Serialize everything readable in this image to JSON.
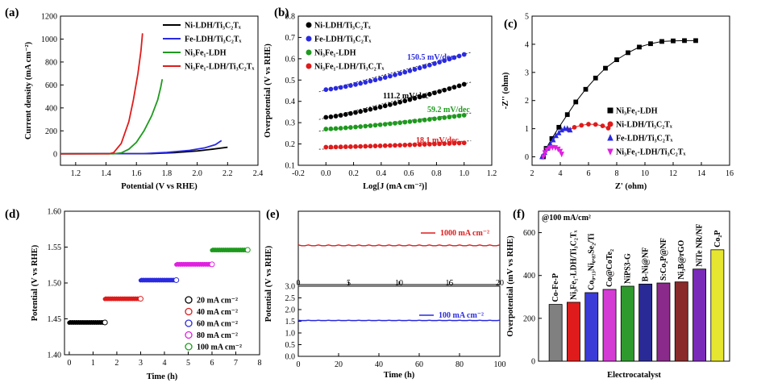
{
  "chart_data": [
    {
      "panel": "(a)",
      "type": "line",
      "xlabel": "Potential (V vs RHE)",
      "ylabel": "Current density (mA cm⁻²)",
      "xlim": [
        1.1,
        2.4
      ],
      "ylim": [
        -100,
        1200
      ],
      "xticks": [
        "1.2",
        "1.4",
        "1.6",
        "1.8",
        "2.0",
        "2.2",
        "2.4"
      ],
      "yticks": [
        "0",
        "200",
        "400",
        "600",
        "800",
        "1000",
        "1200"
      ],
      "legend_position": "top-right",
      "series": [
        {
          "name": "Ni-LDH/Ti₃C₂Tₓ",
          "color": "#000000",
          "points": [
            [
              1.1,
              0
            ],
            [
              1.7,
              2
            ],
            [
              1.85,
              10
            ],
            [
              2.0,
              25
            ],
            [
              2.1,
              40
            ],
            [
              2.2,
              57
            ]
          ]
        },
        {
          "name": "Fe-LDH/Ti₃C₂Tₓ",
          "color": "#2a2ae0",
          "points": [
            [
              1.1,
              0
            ],
            [
              1.65,
              2
            ],
            [
              1.8,
              12
            ],
            [
              1.95,
              30
            ],
            [
              2.05,
              52
            ],
            [
              2.12,
              80
            ],
            [
              2.16,
              115
            ]
          ]
        },
        {
          "name": "Ni₃Fe₁-LDH",
          "color": "#1e9a1e",
          "points": [
            [
              1.1,
              0
            ],
            [
              1.45,
              0
            ],
            [
              1.5,
              8
            ],
            [
              1.55,
              40
            ],
            [
              1.6,
              100
            ],
            [
              1.65,
              200
            ],
            [
              1.7,
              330
            ],
            [
              1.74,
              470
            ],
            [
              1.76,
              580
            ],
            [
              1.77,
              650
            ]
          ]
        },
        {
          "name": "Ni₃Fe₁-LDH/Ti₃C₂Tₓ",
          "color": "#e01b1b",
          "points": [
            [
              1.1,
              0
            ],
            [
              1.42,
              0
            ],
            [
              1.45,
              10
            ],
            [
              1.5,
              90
            ],
            [
              1.55,
              280
            ],
            [
              1.58,
              470
            ],
            [
              1.61,
              700
            ],
            [
              1.63,
              900
            ],
            [
              1.64,
              1050
            ]
          ]
        }
      ]
    },
    {
      "panel": "(b)",
      "type": "scatter",
      "xlabel": "Log[J (mA cm⁻²)]",
      "ylabel": "Overpotential (V vs RHE)",
      "xlim": [
        -0.2,
        1.2
      ],
      "ylim": [
        0.1,
        0.8
      ],
      "xticks": [
        "-0.2",
        "0.0",
        "0.2",
        "0.4",
        "0.6",
        "0.8",
        "1.0",
        "1.2"
      ],
      "yticks": [
        "0.1",
        "0.2",
        "0.3",
        "0.4",
        "0.5",
        "0.6",
        "0.7",
        "0.8"
      ],
      "legend_position": "top-left",
      "series": [
        {
          "name": "Ni-LDH/Ti₃C₂Tₓ",
          "color": "#000000",
          "x0": 0.0,
          "x1": 1.0,
          "y0": 0.325,
          "y1": 0.48,
          "marker": "circle",
          "tafel": "111.2 mV/dec"
        },
        {
          "name": "Fe-LDH/Ti₃C₂Tₓ",
          "color": "#2a2ae0",
          "x0": 0.0,
          "x1": 1.0,
          "y0": 0.455,
          "y1": 0.62,
          "marker": "circle",
          "tafel": "150.5 mV/dec"
        },
        {
          "name": "Ni₃Fe₁-LDH",
          "color": "#1e9a1e",
          "x0": 0.0,
          "x1": 1.0,
          "y0": 0.27,
          "y1": 0.335,
          "marker": "circle",
          "tafel": "59.2 mV/dec"
        },
        {
          "name": "Ni₃Fe₁-LDH/Ti₃C₂Tₓ",
          "color": "#e01b1b",
          "x0": 0.0,
          "x1": 1.0,
          "y0": 0.185,
          "y1": 0.205,
          "marker": "circle",
          "tafel": "18.1 mV/dec"
        }
      ]
    },
    {
      "panel": "(c)",
      "type": "scatter",
      "xlabel": "Z' (ohm)",
      "ylabel": "-Z'' (ohm)",
      "xlim": [
        2,
        16
      ],
      "ylim": [
        -0.3,
        5
      ],
      "xticks": [
        "2",
        "4",
        "6",
        "8",
        "10",
        "12",
        "14",
        "16"
      ],
      "yticks": [
        "0",
        "1",
        "2",
        "3",
        "4",
        "5"
      ],
      "legend_position": "bottom-right",
      "series": [
        {
          "name": "Ni₃Fe₁-LDH",
          "color": "#000000",
          "marker": "square",
          "points": [
            [
              2.8,
              0.0
            ],
            [
              3.0,
              0.3
            ],
            [
              3.4,
              0.65
            ],
            [
              3.9,
              1.05
            ],
            [
              4.5,
              1.5
            ],
            [
              5.1,
              1.95
            ],
            [
              5.8,
              2.4
            ],
            [
              6.5,
              2.8
            ],
            [
              7.2,
              3.15
            ],
            [
              8.0,
              3.45
            ],
            [
              8.8,
              3.7
            ],
            [
              9.6,
              3.9
            ],
            [
              10.4,
              4.02
            ],
            [
              11.2,
              4.1
            ],
            [
              12.0,
              4.12
            ],
            [
              12.8,
              4.13
            ],
            [
              13.6,
              4.13
            ]
          ]
        },
        {
          "name": "Ni-LDH/Ti₃C₂Tₓ",
          "color": "#e01b1b",
          "marker": "circle",
          "points": [
            [
              4.6,
              0.95
            ],
            [
              5.0,
              1.05
            ],
            [
              5.5,
              1.12
            ],
            [
              6.0,
              1.16
            ],
            [
              6.5,
              1.15
            ],
            [
              7.0,
              1.1
            ],
            [
              7.4,
              1.02
            ]
          ]
        },
        {
          "name": "Fe-LDH/Ti₃C₂Tₓ",
          "color": "#2a2ae0",
          "marker": "triangle",
          "points": [
            [
              2.7,
              0.0
            ],
            [
              2.9,
              0.15
            ],
            [
              3.1,
              0.3
            ],
            [
              3.3,
              0.45
            ],
            [
              3.5,
              0.6
            ],
            [
              3.7,
              0.75
            ],
            [
              3.9,
              0.85
            ],
            [
              4.1,
              0.95
            ],
            [
              4.3,
              1.0
            ],
            [
              4.5,
              1.0
            ],
            [
              4.7,
              0.95
            ]
          ]
        },
        {
          "name": "Ni₃Fe₁-LDH/Ti₃C₂Tₓ",
          "color": "#e020e0",
          "marker": "triangle-down",
          "points": [
            [
              2.8,
              0.0
            ],
            [
              2.9,
              0.15
            ],
            [
              3.05,
              0.25
            ],
            [
              3.25,
              0.32
            ],
            [
              3.45,
              0.34
            ],
            [
              3.65,
              0.33
            ],
            [
              3.85,
              0.28
            ],
            [
              4.0,
              0.2
            ],
            [
              4.1,
              0.1
            ]
          ]
        }
      ]
    },
    {
      "panel": "(d)",
      "type": "scatter",
      "xlabel": "Time (h)",
      "ylabel": "Potential (V vs RHE)",
      "xlim": [
        -0.2,
        8
      ],
      "ylim": [
        1.4,
        1.6
      ],
      "xticks": [
        "0",
        "1",
        "2",
        "3",
        "4",
        "5",
        "6",
        "7",
        "8"
      ],
      "yticks": [
        "1.40",
        "1.45",
        "1.50",
        "1.55",
        "1.60"
      ],
      "legend_position": "bottom-right",
      "series": [
        {
          "name": "20 mA cm⁻²",
          "color": "#000000",
          "x0": 0.0,
          "x1": 1.5,
          "y": 1.445
        },
        {
          "name": "40 mA cm⁻²",
          "color": "#e01b1b",
          "x0": 1.5,
          "x1": 3.0,
          "y": 1.478
        },
        {
          "name": "60 mA cm⁻²",
          "color": "#2a2ae0",
          "x0": 3.0,
          "x1": 4.5,
          "y": 1.504
        },
        {
          "name": "80 mA cm⁻²",
          "color": "#e020e0",
          "x0": 4.5,
          "x1": 6.0,
          "y": 1.526
        },
        {
          "name": "100 mA cm⁻²",
          "color": "#1e9a1e",
          "x0": 6.0,
          "x1": 7.5,
          "y": 1.546
        }
      ]
    },
    {
      "panel": "(e)",
      "type": "line",
      "ylabel": "Potential (V vs RHE)",
      "top": {
        "xlim": [
          0,
          20
        ],
        "ylim": [
          0,
          3.0
        ],
        "xticks": [
          "0",
          "5",
          "10",
          "15",
          "20"
        ],
        "series": [
          {
            "name": "1000 mA cm⁻²",
            "color": "#e01b1b",
            "y": 1.6
          }
        ]
      },
      "bottom": {
        "xlabel": "Time (h)",
        "xlim": [
          0,
          100
        ],
        "ylim": [
          0,
          3.0
        ],
        "xticks": [
          "0",
          "20",
          "40",
          "60",
          "80",
          "100"
        ],
        "yticks": [
          "0.0",
          "0.5",
          "1.0",
          "1.5",
          "2.0",
          "2.5",
          "3.0"
        ],
        "series": [
          {
            "name": "100 mA cm⁻²",
            "color": "#2a2ae0",
            "y": 1.53
          }
        ]
      }
    },
    {
      "panel": "(f)",
      "type": "bar",
      "xlabel": "Electrocatalyst",
      "ylabel": "Overpotential (mV vs RHE)",
      "annotation": "@100 mA/cm²",
      "ylim": [
        0,
        700
      ],
      "yticks": [
        "0",
        "200",
        "400",
        "600"
      ],
      "categories": [
        "Co-Fe-P",
        "Ni₃Fe₁-LDH/Ti₃C₂Tₓ",
        "Co₀.₁₃Ni₀.₈₇Se₂/Ti",
        "Co@CoTe₂",
        "NiPS3-G",
        "B-Ni@NF",
        "S:Co₂P@NF",
        "Ni₃B@rGO",
        "NiTe NR/NF",
        "Co₂P"
      ],
      "values": [
        265,
        275,
        320,
        335,
        350,
        360,
        365,
        370,
        430,
        520
      ],
      "colors": [
        "#808080",
        "#e01b1b",
        "#3b3bd8",
        "#d43bd4",
        "#2e9a2e",
        "#2a2a96",
        "#8a2a8a",
        "#8a2a2a",
        "#7a2ab8",
        "#e6e630"
      ]
    }
  ]
}
